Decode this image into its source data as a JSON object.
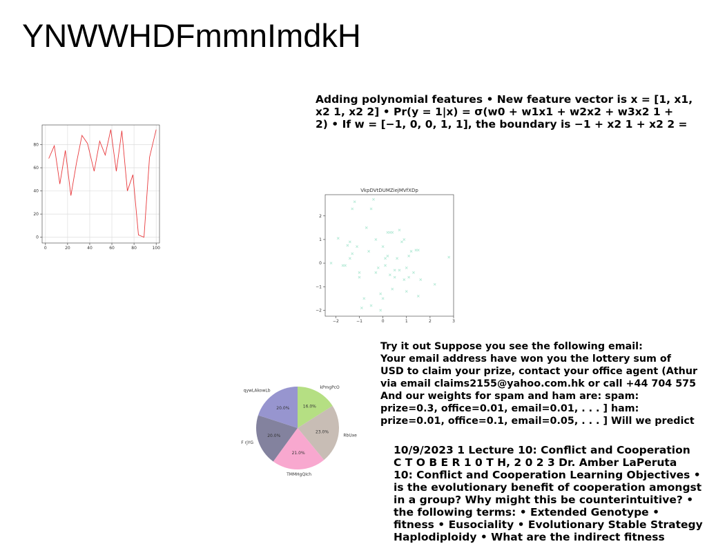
{
  "header": {
    "title": "YNWWHDFmmnImdkH"
  },
  "texts": [
    {
      "lines": [
        "Adding polynomial features • New feature vector is x = [1, x1,",
        "x2 1, x2 2] • Pr(y = 1|x) = σ(w0 + w1x1 + w2x2 + w3x2 1 +",
        "2) • If w = [−1, 0, 0, 1, 1], the boundary is −1 + x2 1 + x2 2 ="
      ]
    },
    {
      "lines": [
        "Try it out Suppose you see the following email:",
        "Your email address have won you the lottery sum of",
        "USD to claim your prize, contact your office agent (Athur",
        "via email claims2155@yahoo.com.hk or call +44 704 575",
        "And our weights for spam and ham are: spam:",
        "prize=0.3, office=0.01, email=0.01, . . . ] ham:",
        "prize=0.01, office=0.1, email=0.05, . . . ] Will we predict"
      ]
    },
    {
      "lines": [
        "10/9/2023 1 Lecture 10: Conflict and Cooperation",
        "C T O B E R 1 0 T H, 2 0 2 3 Dr. Amber LaPeruta",
        "10: Conflict and Cooperation Learning Objectives •",
        "is the evolutionary benefit of cooperation amongst",
        "in a group? Why might this be counterintuitive? •",
        "the following terms: • Extended Genotype •",
        "fitness • Eusociality • Evolutionary Stable Strategy",
        "Haplodiploidy • What are the indirect fitness"
      ]
    }
  ],
  "chart_data": [
    {
      "type": "line",
      "color": "#e8383b",
      "grid": true,
      "x": [
        3,
        8,
        13,
        18,
        23,
        28,
        33,
        38,
        44,
        49,
        54,
        59,
        64,
        69,
        74,
        79,
        84,
        89,
        94,
        100
      ],
      "values": [
        68,
        79,
        46,
        75,
        36,
        64,
        88,
        81,
        57,
        83,
        71,
        93,
        57,
        92,
        40,
        54,
        2,
        0,
        69,
        93
      ],
      "xlim": [
        -3,
        103
      ],
      "xticks": [
        0,
        20,
        40,
        60,
        80,
        100
      ],
      "ylim": [
        -5,
        97
      ],
      "yticks": [
        0,
        20,
        40,
        60,
        80
      ]
    },
    {
      "type": "scatter",
      "title": "VkpDVtDUMZiejMVfXDp",
      "color": "#a8e6cf",
      "x": [
        -2.2,
        -1.9,
        -1.7,
        -1.6,
        -1.5,
        -1.4,
        -1.4,
        -1.3,
        -1.2,
        -1.1,
        -1.0,
        -1.0,
        -0.9,
        -0.8,
        -0.7,
        -0.6,
        -0.5,
        -0.4,
        -0.3,
        -0.3,
        -0.2,
        -0.1,
        -0.1,
        0.0,
        0.0,
        0.1,
        0.1,
        0.2,
        0.2,
        0.3,
        0.3,
        0.4,
        0.4,
        0.5,
        0.6,
        0.7,
        0.7,
        0.8,
        0.9,
        0.9,
        1.0,
        1.1,
        1.1,
        1.2,
        1.3,
        1.4,
        1.5,
        1.5,
        1.6,
        2.2,
        2.8,
        -0.5,
        0.5,
        1.0,
        -1.3
      ],
      "values": [
        0,
        1.05,
        -0.1,
        -0.1,
        0.75,
        0.9,
        0.2,
        2.3,
        2.6,
        0.7,
        -0.6,
        -0.4,
        -1.9,
        -1.5,
        1.5,
        0.5,
        -1.8,
        2.7,
        1.0,
        -0.4,
        -0.2,
        -1.3,
        -2.0,
        0.7,
        -1.5,
        0.2,
        -0.1,
        0.3,
        1.3,
        1.3,
        -0.5,
        -1.1,
        1.3,
        -0.6,
        0.2,
        1.4,
        -0.3,
        0.9,
        1.0,
        -0.7,
        -1.2,
        -0.6,
        0.3,
        0.5,
        -0.4,
        0.55,
        0.55,
        -1.4,
        -0.7,
        -0.9,
        0.25,
        2.3,
        -0.3,
        -0.2,
        0.4
      ],
      "xlim": [
        -2.45,
        3.0
      ],
      "xticks": [
        {
          "value": -2,
          "label": "−2"
        },
        {
          "value": -1,
          "label": "−1"
        },
        0,
        1,
        2,
        3
      ],
      "ylim": [
        -2.25,
        2.9
      ],
      "yticks": [
        {
          "value": -2,
          "label": "−2"
        },
        {
          "value": -1,
          "label": "−1"
        },
        0,
        1,
        2
      ]
    },
    {
      "type": "pie",
      "categories": [
        "kPmgPcO",
        "RbUxe",
        "TMMHgQIch",
        "F rjYG",
        "qywLAkowLb"
      ],
      "values": [
        16.0,
        23.0,
        21.0,
        20.0,
        20.0
      ],
      "value_labels": [
        "16.0%",
        "23.0%",
        "21.0%",
        "20.0%",
        "20.0%"
      ],
      "colors": [
        "#b5df83",
        "#c8bdb5",
        "#f8a8cf",
        "#83829e",
        "#9795cf"
      ]
    }
  ]
}
